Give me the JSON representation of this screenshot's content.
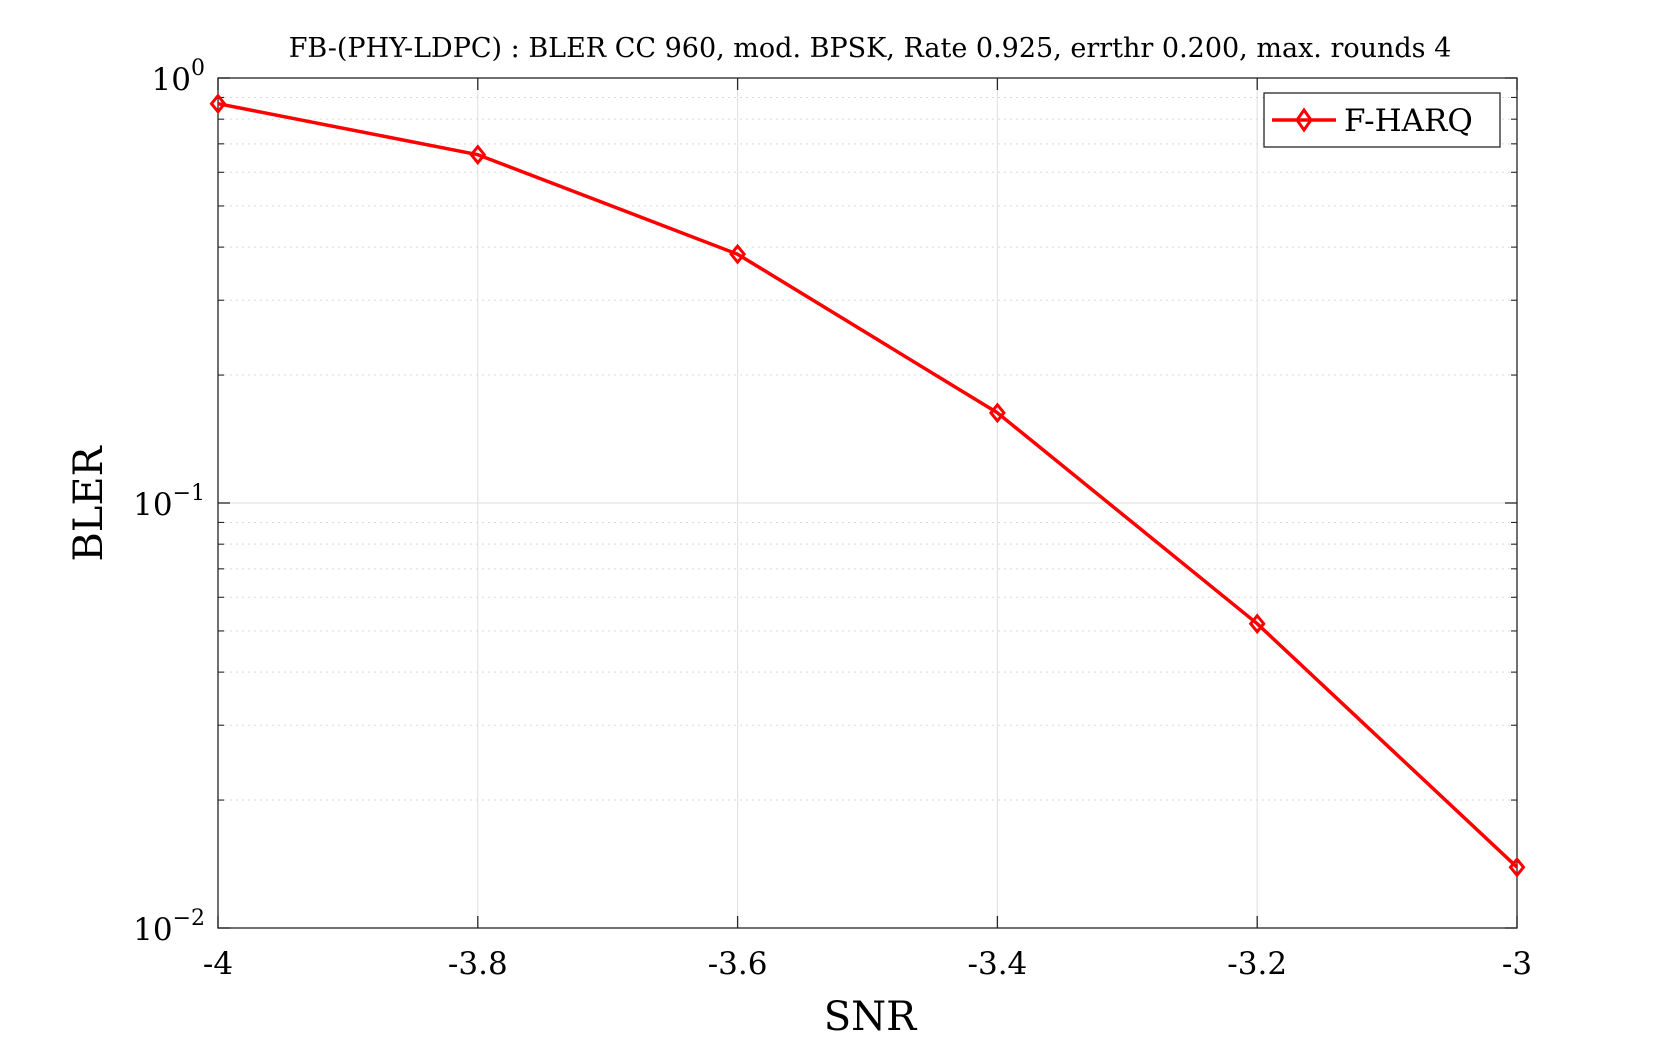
{
  "chart_data": {
    "type": "line",
    "title": "FB-(PHY-LDPC) : BLER CC 960, mod. BPSK, Rate 0.925, errthr 0.200, max. rounds 4",
    "xlabel": "SNR",
    "ylabel": "BLER",
    "x_scale": "linear",
    "y_scale": "log",
    "xlim": [
      -4,
      -3
    ],
    "ylim": [
      0.01,
      1
    ],
    "x_ticks": [
      -4,
      -3.8,
      -3.6,
      -3.4,
      -3.2,
      -3
    ],
    "x_tick_labels": [
      "-4",
      "-3.8",
      "-3.6",
      "-3.4",
      "-3.2",
      "-3"
    ],
    "y_ticks": [
      {
        "value": 1,
        "base": "10",
        "exp": "0"
      },
      {
        "value": 0.1,
        "base": "10",
        "exp": "−1"
      },
      {
        "value": 0.01,
        "base": "10",
        "exp": "−2"
      }
    ],
    "grid": true,
    "minor_grid_y": true,
    "legend_position": "top-right",
    "series": [
      {
        "name": "F-HARQ",
        "color": "#ff0000",
        "marker": "diamond",
        "x": [
          -4,
          -3.8,
          -3.6,
          -3.4,
          -3.2,
          -3
        ],
        "y": [
          0.87,
          0.66,
          0.385,
          0.163,
          0.052,
          0.0139
        ]
      }
    ]
  }
}
